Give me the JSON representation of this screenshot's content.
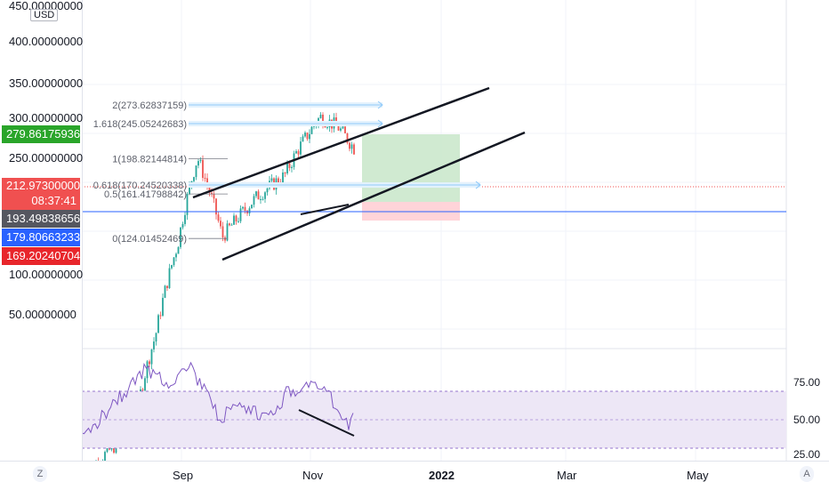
{
  "currency": "USD",
  "price_scale": {
    "ticks": [
      "450.00000000",
      "400.00000000",
      "350.00000000",
      "300.00000000",
      "250.00000000",
      "100.00000000",
      "50.00000000"
    ]
  },
  "price_badges": [
    {
      "value": "279.86175936",
      "color": "#2aa52a"
    },
    {
      "value": "212.97300000",
      "color": "#f05050"
    },
    {
      "value": "08:37:41",
      "color": "#f05050"
    },
    {
      "value": "193.49838656",
      "color": "#555760"
    },
    {
      "value": "179.80663233",
      "color": "#2962ff"
    },
    {
      "value": "169.20240704",
      "color": "#e8262b"
    }
  ],
  "fib_levels": [
    {
      "label": "2(273.62837159)",
      "price": 273.628
    },
    {
      "label": "1.618(245.05242683)",
      "price": 245.052
    },
    {
      "label": "1(198.82144814)",
      "price": 198.821
    },
    {
      "label": "0.618(170.24520338)",
      "price": 170.245
    },
    {
      "label": "0.5(161.41798842)",
      "price": 161.418
    },
    {
      "label": "0(124.01452469)",
      "price": 124.015
    }
  ],
  "rsi_scale": {
    "ticks": [
      "75.00",
      "50.00",
      "25.00"
    ]
  },
  "time_axis": {
    "labels": [
      "Sep",
      "Nov",
      "2022",
      "Mar",
      "May"
    ],
    "left_button": "Z",
    "right_button": "A"
  },
  "colors": {
    "up": "#26a69a",
    "down": "#ef5350",
    "rsi_line": "#7e57c2",
    "rsi_band": "#ede7f6",
    "target_zone": "#c8e6c9",
    "stop_zone": "#ffcdd2",
    "fib_line": "#90caf9"
  }
}
